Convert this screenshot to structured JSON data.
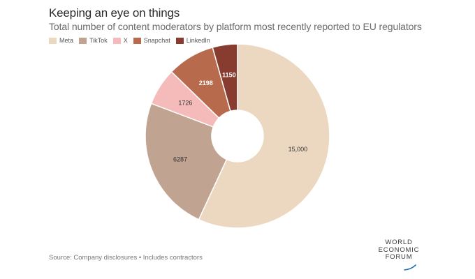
{
  "header": {
    "title": "Keeping an eye on things",
    "subtitle": "Total number of content moderators by platform most recently reported to EU regulators"
  },
  "footer": {
    "source": "Source: Company disclosures • Includes contractors"
  },
  "logo": {
    "line1": "WORLD",
    "line2": "ECONOMIC",
    "line3": "FORUM",
    "arc_color": "#1e6fb8"
  },
  "chart_data": {
    "type": "pie",
    "variant": "donut",
    "title": "Keeping an eye on things",
    "subtitle": "Total number of content moderators by platform most recently reported to EU regulators",
    "legend_position": "top-left",
    "categories": [
      "Meta",
      "TikTok",
      "X",
      "Snapchat",
      "LinkedIn"
    ],
    "values": [
      15000,
      6287,
      1726,
      2198,
      1150
    ],
    "value_labels": [
      "15,000",
      "6287",
      "1726",
      "2198",
      "1150"
    ],
    "colors": [
      "#ecd8c0",
      "#c0a391",
      "#f5bbbb",
      "#b86a4c",
      "#883c30"
    ],
    "label_colors": [
      "#333333",
      "#333333",
      "#333333",
      "#ffffff",
      "#ffffff"
    ]
  }
}
